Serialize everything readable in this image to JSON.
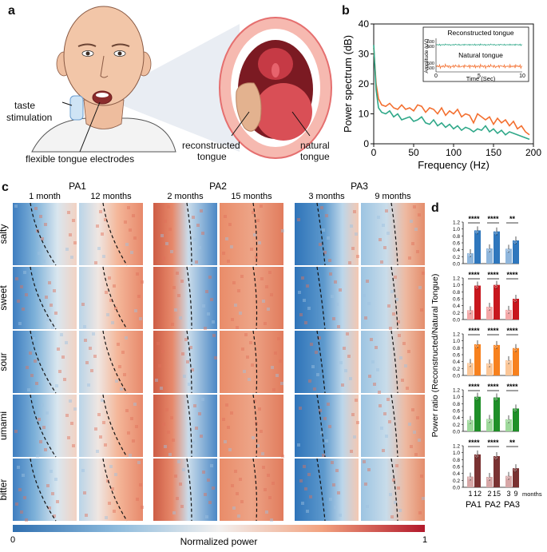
{
  "panel_a": {
    "letter": "a",
    "taste_label_1": "taste",
    "taste_label_2": "stimulation",
    "electrode_label": "flexible tongue electrodes",
    "reconstructed_1": "reconstructed",
    "reconstructed_2": "tongue",
    "natural_1": "natural",
    "natural_2": "tongue"
  },
  "panel_b": {
    "letter": "b"
  },
  "panel_c": {
    "letter": "c",
    "patients": [
      "PA1",
      "PA2",
      "PA3"
    ],
    "timepoints": [
      "1 month",
      "12 months",
      "2 months",
      "15 months",
      "3 months",
      "9 months"
    ],
    "tastes": [
      "salty",
      "sweet",
      "sour",
      "umami",
      "bitter"
    ],
    "colorbar_label": "Normalized power",
    "colorbar_min": "0",
    "colorbar_max": "1"
  },
  "panel_d": {
    "letter": "d",
    "ylabel": "Power ratio (Reconstructed/Natural Tongue)",
    "x_months_word": "months"
  },
  "chart_data": [
    {
      "type": "line",
      "title": "Power spectrum",
      "xlabel": "Frequency (Hz)",
      "ylabel": "Power spectrum (dB)",
      "xlim": [
        0,
        200
      ],
      "ylim": [
        0,
        40
      ],
      "xticks": [
        0,
        50,
        100,
        150,
        200
      ],
      "yticks": [
        0,
        10,
        20,
        30,
        40
      ],
      "series": [
        {
          "name": "Natural tongue",
          "color": "#f36f2f",
          "x": [
            0,
            3,
            6,
            10,
            15,
            20,
            25,
            30,
            35,
            40,
            45,
            50,
            55,
            60,
            65,
            70,
            75,
            80,
            85,
            90,
            95,
            100,
            105,
            110,
            115,
            120,
            125,
            130,
            135,
            140,
            145,
            150,
            155,
            160,
            165,
            170,
            175,
            180,
            185,
            190,
            195
          ],
          "y": [
            32,
            20,
            15,
            13,
            12.5,
            13.5,
            12,
            11.5,
            13,
            11.5,
            12,
            11,
            13,
            12.5,
            10.5,
            12,
            11.5,
            10,
            12,
            9.5,
            11,
            10,
            11.5,
            9,
            10,
            9.5,
            7,
            10,
            9,
            8,
            9,
            6.5,
            8.5,
            7,
            8,
            6,
            7.5,
            5,
            6,
            4,
            3
          ]
        },
        {
          "name": "Reconstructed tongue",
          "color": "#2fa889",
          "x": [
            0,
            3,
            6,
            10,
            15,
            20,
            25,
            30,
            35,
            40,
            45,
            50,
            55,
            60,
            65,
            70,
            75,
            80,
            85,
            90,
            95,
            100,
            105,
            110,
            115,
            120,
            125,
            130,
            135,
            140,
            145,
            150,
            155,
            160,
            165,
            170,
            175,
            180,
            185,
            190,
            195
          ],
          "y": [
            33,
            18,
            12,
            10.5,
            10,
            11,
            9,
            10,
            8,
            8.5,
            9,
            7.5,
            8,
            9,
            7,
            6.5,
            8,
            6,
            7,
            5.5,
            6.5,
            5,
            6,
            4.5,
            5.5,
            5,
            4,
            5,
            4.5,
            6,
            4,
            5,
            3.5,
            4.5,
            3,
            4,
            3.5,
            3,
            2.5,
            2,
            1.5
          ]
        }
      ],
      "inset": {
        "xlabel": "Time (Sec)",
        "ylabel": "Amplitude (μV)",
        "xticks": [
          0,
          5,
          10
        ],
        "yticks": [
          500,
          -500
        ],
        "top_title": "Reconstructed tongue",
        "bottom_title": "Natural tongue"
      }
    },
    {
      "type": "bar",
      "groups": [
        "PA1",
        "PA2",
        "PA3"
      ],
      "months": [
        "1",
        "12",
        "2",
        "15",
        "3",
        "9"
      ],
      "yticks": [
        0,
        0.2,
        0.4,
        0.6,
        0.8,
        1.0,
        1.2
      ],
      "ylim": [
        0,
        1.2
      ],
      "tastes": [
        {
          "name": "salty",
          "light": "#8fb6dc",
          "dark": "#2f77bd",
          "values": [
            0.3,
            0.96,
            0.44,
            0.93,
            0.43,
            0.67
          ],
          "sig": [
            "****",
            "****",
            "**"
          ]
        },
        {
          "name": "sweet",
          "light": "#f4a7a7",
          "dark": "#c8171e",
          "values": [
            0.27,
            0.98,
            0.37,
            1.0,
            0.28,
            0.6
          ],
          "sig": [
            "****",
            "****",
            "****"
          ]
        },
        {
          "name": "sour",
          "light": "#fbc697",
          "dark": "#f7811e",
          "values": [
            0.36,
            0.9,
            0.35,
            0.88,
            0.44,
            0.79
          ],
          "sig": [
            "****",
            "****",
            "****"
          ]
        },
        {
          "name": "umami",
          "light": "#9ed99b",
          "dark": "#1f8f28",
          "values": [
            0.33,
            1.0,
            0.36,
            0.98,
            0.35,
            0.66
          ],
          "sig": [
            "****",
            "****",
            "****"
          ]
        },
        {
          "name": "bitter",
          "light": "#d7a7a7",
          "dark": "#7a3232",
          "values": [
            0.31,
            0.95,
            0.3,
            0.9,
            0.33,
            0.55
          ],
          "sig": [
            "****",
            "****",
            "**"
          ]
        }
      ]
    }
  ]
}
